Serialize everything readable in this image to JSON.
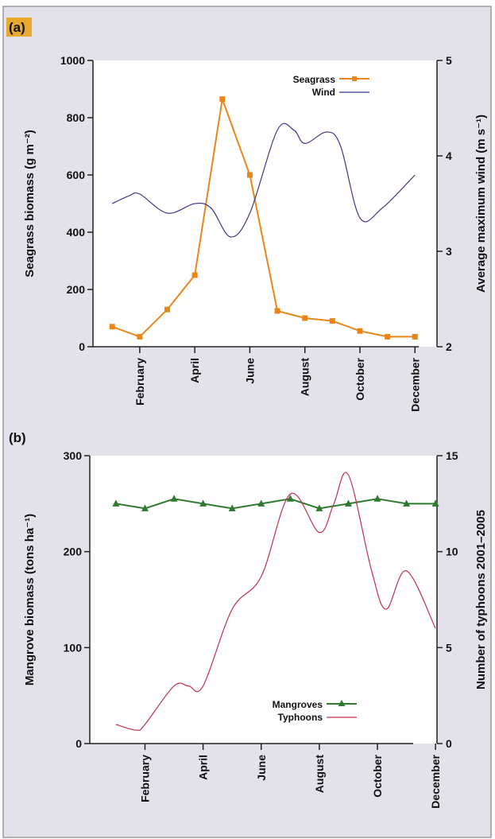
{
  "colors": {
    "frame_bg": "#e3e1ea",
    "frame_border": "#9a9aa2",
    "plot_bg": "#ffffff",
    "axis": "#222222",
    "panel_label_bg": "#e8a92e",
    "seagrass": "#e8861a",
    "wind": "#3a3a8c",
    "mangroves": "#2f7a2f",
    "typhoons": "#c0304a"
  },
  "chart_data": [
    {
      "panel_label": "(a)",
      "type": "line",
      "x_tick_labels": [
        "February",
        "April",
        "June",
        "August",
        "October",
        "December"
      ],
      "x_tick_months": [
        2,
        4,
        6,
        8,
        10,
        12
      ],
      "xlim": [
        0.3,
        12.8
      ],
      "ylabel_left": "Seagrass biomass (g m⁻²)",
      "ylabel_right": "Average maximum wind (m s⁻¹)",
      "ylim_left": [
        0,
        1000
      ],
      "ylim_right": [
        2,
        5
      ],
      "yticks_left": [
        0,
        200,
        400,
        600,
        800,
        1000
      ],
      "yticks_right": [
        2,
        3,
        4,
        5
      ],
      "legend_position": "top-right",
      "series": [
        {
          "name": "Seagrass",
          "axis": "left",
          "marker": "square",
          "x": [
            1,
            2,
            3,
            4,
            5,
            6,
            7,
            8,
            9,
            10,
            11,
            12
          ],
          "values": [
            70,
            35,
            130,
            250,
            865,
            600,
            125,
            100,
            90,
            55,
            35,
            35
          ]
        },
        {
          "name": "Wind",
          "axis": "right",
          "marker": "none",
          "x": [
            1,
            1.6,
            2,
            3,
            4,
            4.6,
            5.3,
            6,
            7,
            7.6,
            8,
            8.8,
            9.3,
            10,
            10.8,
            12
          ],
          "values": [
            3.5,
            3.58,
            3.6,
            3.4,
            3.5,
            3.45,
            3.15,
            3.4,
            4.27,
            4.27,
            4.13,
            4.25,
            4.1,
            3.35,
            3.45,
            3.8
          ]
        }
      ]
    },
    {
      "panel_label": "(b)",
      "type": "line",
      "x_tick_labels": [
        "February",
        "April",
        "June",
        "August",
        "October",
        "December"
      ],
      "x_tick_months": [
        2,
        4,
        6,
        8,
        10,
        12
      ],
      "xlim": [
        0.1,
        12.05
      ],
      "ylabel_left": "Mangrove biomass (tons ha⁻¹)",
      "ylabel_right": "Number of typhoons 2001–2005",
      "ylim_left": [
        0,
        300
      ],
      "ylim_right": [
        0,
        15
      ],
      "yticks_left": [
        0,
        100,
        200,
        300
      ],
      "yticks_right": [
        0,
        5,
        10,
        15
      ],
      "legend_position": "bottom-right",
      "series": [
        {
          "name": "Mangroves",
          "axis": "left",
          "marker": "triangle",
          "x": [
            1,
            2,
            3,
            4,
            5,
            6,
            7,
            8,
            9,
            10,
            11,
            12
          ],
          "values": [
            250,
            245,
            255,
            250,
            245,
            250,
            255,
            245,
            250,
            255,
            250,
            250
          ]
        },
        {
          "name": "Typhoons",
          "axis": "right",
          "marker": "none",
          "x": [
            1,
            1.7,
            2,
            3,
            3.5,
            4,
            5,
            6,
            7,
            8,
            8.5,
            9,
            9.8,
            10.3,
            11,
            12
          ],
          "values": [
            1,
            0.7,
            1,
            3,
            3,
            3,
            7,
            8.7,
            13,
            11,
            12.5,
            14,
            9,
            7,
            9,
            6
          ]
        }
      ]
    }
  ]
}
